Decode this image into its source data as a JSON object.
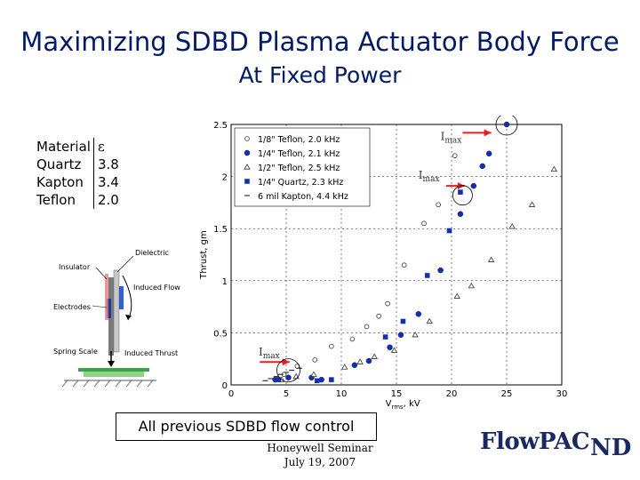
{
  "slide": {
    "title_line1": "Maximizing SDBD Plasma Actuator Body Force",
    "title_line2": "At Fixed Power",
    "caption": "All previous SDBD flow control",
    "footer_line1": "Honeywell Seminar",
    "footer_line2": "July 19, 2007",
    "logo_text": "FlowPAC",
    "logo_mark": "ND"
  },
  "materials": {
    "header": [
      "Material",
      "ε"
    ],
    "rows": [
      {
        "name": "Quartz",
        "eps": "3.8"
      },
      {
        "name": "Kapton",
        "eps": "3.4"
      },
      {
        "name": "Teflon",
        "eps": "2.0"
      }
    ]
  },
  "schematic": {
    "labels": [
      "Dielectric",
      "Insulator",
      "Induced Flow",
      "Electrodes",
      "Spring Scale",
      "Induced Thrust"
    ]
  },
  "annotations": {
    "imax": "Imax"
  },
  "chart_data": {
    "type": "scatter",
    "xlabel": "V_rms, kV",
    "ylabel": "Thrust, gm",
    "xlim": [
      0,
      30
    ],
    "ylim": [
      0,
      2.5
    ],
    "xticks": [
      0,
      5,
      10,
      15,
      20,
      25,
      30
    ],
    "yticks": [
      0,
      0.5,
      1,
      1.5,
      2,
      2.5
    ],
    "grid": true,
    "legend_position": "top-left",
    "series": [
      {
        "name": "1/8\" Teflon, 2.0 kHz",
        "marker": "open-circle",
        "x": [
          4.8,
          6.0,
          7.6,
          9.1,
          11.0,
          12.3,
          13.4,
          14.2,
          15.7,
          17.5,
          18.8,
          20.3
        ],
        "y": [
          0.1,
          0.18,
          0.24,
          0.37,
          0.44,
          0.56,
          0.66,
          0.78,
          1.15,
          1.55,
          1.73,
          2.2
        ]
      },
      {
        "name": "1/4\" Teflon, 2.1 kHz",
        "marker": "filled-circle",
        "x": [
          4.0,
          5.2,
          7.3,
          8.2,
          11.2,
          12.5,
          14.4,
          15.4,
          17.0,
          19.0,
          20.8,
          22.0,
          22.8,
          23.4,
          25.0
        ],
        "y": [
          0.05,
          0.07,
          0.07,
          0.05,
          0.19,
          0.23,
          0.36,
          0.48,
          0.68,
          1.1,
          1.64,
          1.91,
          2.1,
          2.22,
          2.5
        ]
      },
      {
        "name": "1/2\" Teflon, 2.5 kHz",
        "marker": "open-triangle",
        "x": [
          4.6,
          5.9,
          7.5,
          10.3,
          11.7,
          13.0,
          14.8,
          16.7,
          18.0,
          20.5,
          21.8,
          23.6,
          25.5,
          27.3,
          29.3
        ],
        "y": [
          0.05,
          0.08,
          0.1,
          0.17,
          0.22,
          0.27,
          0.33,
          0.48,
          0.61,
          0.85,
          0.95,
          1.2,
          1.52,
          1.73,
          2.07
        ]
      },
      {
        "name": "1/4\" Quartz, 2.3 kHz",
        "marker": "filled-square",
        "x": [
          4.3,
          7.8,
          9.1,
          14.0,
          15.6,
          17.8,
          19.8,
          20.8
        ],
        "y": [
          0.05,
          0.04,
          0.05,
          0.46,
          0.61,
          1.05,
          1.48,
          1.85
        ]
      },
      {
        "name": "6 mil Kapton, 4.4 kHz",
        "marker": "dash",
        "x": [
          3.1,
          3.6,
          4.1,
          4.5,
          5.0,
          5.5,
          6.2
        ],
        "y": [
          0.04,
          0.06,
          0.08,
          0.1,
          0.12,
          0.14,
          0.16
        ]
      }
    ]
  }
}
